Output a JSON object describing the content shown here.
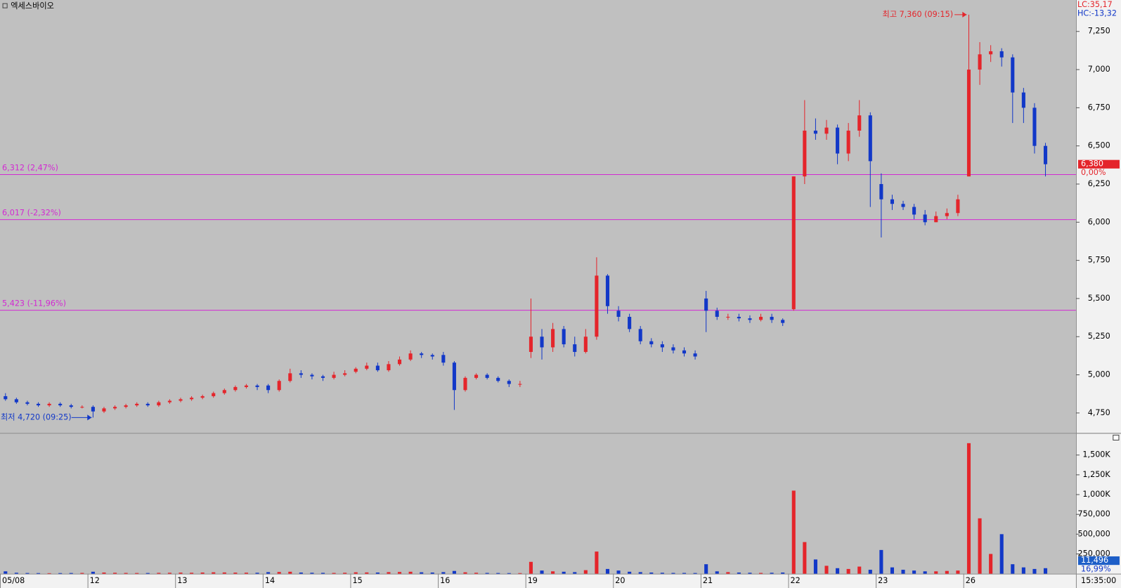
{
  "chart_data": {
    "type": "candlestick",
    "title": "엑세스바이오",
    "categories": [
      "05/08",
      null,
      null,
      null,
      null,
      null,
      null,
      null,
      "12",
      null,
      null,
      null,
      null,
      null,
      null,
      null,
      "13",
      null,
      null,
      null,
      null,
      null,
      null,
      null,
      "14",
      null,
      null,
      null,
      null,
      null,
      null,
      null,
      "15",
      null,
      null,
      null,
      null,
      null,
      null,
      null,
      "16",
      null,
      null,
      null,
      null,
      null,
      null,
      null,
      "19",
      null,
      null,
      null,
      null,
      null,
      null,
      null,
      "20",
      null,
      null,
      null,
      null,
      null,
      null,
      null,
      "21",
      null,
      null,
      null,
      null,
      null,
      null,
      null,
      "22",
      null,
      null,
      null,
      null,
      null,
      null,
      null,
      "23",
      null,
      null,
      null,
      null,
      null,
      null,
      null,
      "26",
      null,
      null,
      null,
      null,
      null,
      null,
      null
    ],
    "open": [
      4860,
      4840,
      4820,
      4810,
      4800,
      4810,
      4800,
      4790,
      4790,
      4760,
      4780,
      4790,
      4800,
      4810,
      4800,
      4820,
      4830,
      4840,
      4850,
      4860,
      4880,
      4900,
      4920,
      4930,
      4930,
      4900,
      4960,
      5010,
      5000,
      4990,
      4980,
      5000,
      5020,
      5040,
      5060,
      5030,
      5070,
      5100,
      5140,
      5130,
      5130,
      5080,
      4900,
      4980,
      5000,
      4980,
      4960,
      4940,
      5150,
      5250,
      5180,
      5300,
      5200,
      5150,
      5250,
      5650,
      5420,
      5380,
      5300,
      5220,
      5200,
      5180,
      5160,
      5140,
      5500,
      5420,
      5380,
      5380,
      5370,
      5360,
      5380,
      5360,
      5430,
      6300,
      6600,
      6580,
      6620,
      6450,
      6600,
      6700,
      6250,
      6150,
      6120,
      6100,
      6050,
      6000,
      6040,
      6060,
      6300,
      7000,
      7100,
      7120,
      7080,
      6850,
      6750,
      6500
    ],
    "high": [
      4880,
      4850,
      4830,
      4820,
      4820,
      4820,
      4810,
      4800,
      4800,
      4790,
      4800,
      4810,
      4820,
      4820,
      4830,
      4840,
      4850,
      4860,
      4870,
      4890,
      4910,
      4930,
      4940,
      4940,
      4940,
      4970,
      5040,
      5030,
      5010,
      5000,
      5020,
      5030,
      5050,
      5080,
      5080,
      5090,
      5120,
      5160,
      5150,
      5140,
      5150,
      5090,
      4990,
      5010,
      5010,
      4990,
      4970,
      4960,
      5500,
      5300,
      5340,
      5320,
      5250,
      5300,
      5770,
      5660,
      5450,
      5400,
      5320,
      5240,
      5220,
      5200,
      5180,
      5160,
      5550,
      5440,
      5400,
      5400,
      5390,
      5400,
      5400,
      5370,
      6300,
      6800,
      6680,
      6670,
      6640,
      6650,
      6800,
      6720,
      6320,
      6180,
      6140,
      6120,
      6080,
      6070,
      6090,
      6180,
      7360,
      7180,
      7160,
      7140,
      7100,
      6880,
      6780,
      6520
    ],
    "low": [
      4830,
      4810,
      4800,
      4790,
      4790,
      4790,
      4780,
      4780,
      4720,
      4750,
      4770,
      4780,
      4790,
      4790,
      4790,
      4810,
      4820,
      4830,
      4840,
      4850,
      4870,
      4890,
      4910,
      4900,
      4880,
      4890,
      4950,
      4980,
      4970,
      4960,
      4970,
      4990,
      5010,
      5030,
      5020,
      5020,
      5060,
      5090,
      5110,
      5100,
      5060,
      4770,
      4890,
      4970,
      4970,
      4950,
      4920,
      4920,
      5110,
      5100,
      5150,
      5180,
      5120,
      5140,
      5230,
      5400,
      5350,
      5280,
      5200,
      5180,
      5150,
      5140,
      5120,
      5100,
      5280,
      5360,
      5360,
      5350,
      5340,
      5350,
      5340,
      5320,
      5420,
      6250,
      6540,
      6540,
      6380,
      6400,
      6560,
      6100,
      5900,
      6080,
      6080,
      6020,
      5980,
      6000,
      6020,
      6040,
      6300,
      6900,
      7050,
      7020,
      6650,
      6650,
      6450,
      6300
    ],
    "close": [
      4840,
      4820,
      4810,
      4800,
      4810,
      4800,
      4790,
      4790,
      4760,
      4780,
      4790,
      4800,
      4810,
      4800,
      4820,
      4830,
      4840,
      4850,
      4860,
      4880,
      4900,
      4920,
      4930,
      4920,
      4900,
      4960,
      5010,
      5000,
      4990,
      4980,
      5000,
      5010,
      5040,
      5060,
      5030,
      5070,
      5100,
      5140,
      5130,
      5120,
      5080,
      4900,
      4980,
      5000,
      4980,
      4960,
      4940,
      4940,
      5250,
      5180,
      5300,
      5200,
      5150,
      5250,
      5650,
      5450,
      5380,
      5300,
      5220,
      5200,
      5180,
      5160,
      5140,
      5120,
      5420,
      5380,
      5380,
      5370,
      5360,
      5380,
      5360,
      5340,
      6300,
      6600,
      6580,
      6620,
      6450,
      6600,
      6700,
      6400,
      6150,
      6120,
      6100,
      6050,
      6000,
      6040,
      6060,
      6150,
      7000,
      7100,
      7120,
      7080,
      6850,
      6750,
      6500,
      6380
    ],
    "up_color": "#e4252b",
    "down_color": "#1238c8",
    "ylim": [
      4619,
      7456
    ],
    "yticks": [
      {
        "value": 4750,
        "label": "4,750"
      },
      {
        "value": 5000,
        "label": "5,000"
      },
      {
        "value": 5250,
        "label": "5,250"
      },
      {
        "value": 5500,
        "label": "5,500"
      },
      {
        "value": 5750,
        "label": "5,750"
      },
      {
        "value": 6000,
        "label": "6,000"
      },
      {
        "value": 6250,
        "label": "6,250"
      },
      {
        "value": 6500,
        "label": "6,500"
      },
      {
        "value": 6750,
        "label": "6,750"
      },
      {
        "value": 7000,
        "label": "7,000"
      },
      {
        "value": 7250,
        "label": "7,250"
      }
    ],
    "reference_color": "#d22ad2",
    "reference_lines": [
      {
        "value": 6312,
        "label": "6,312 (2,47%)"
      },
      {
        "value": 6017,
        "label": "6,017 (-2,32%)"
      },
      {
        "value": 5423,
        "label": "5,423 (-11,96%)"
      }
    ],
    "high_label": "최고 7,360 (09:15)",
    "low_label": "최저 4,720 (09:25)",
    "lc_label": "LC:35,17",
    "hc_label": "HC:-13,32",
    "last_price": {
      "value": 6380,
      "label": "6,380"
    },
    "change_label": "0,00%",
    "x_end_label": "15:35:00",
    "volume": {
      "values": [
        30000,
        12000,
        9000,
        8000,
        7000,
        8000,
        9000,
        10000,
        25000,
        15000,
        12000,
        10000,
        9000,
        9000,
        11000,
        12000,
        14000,
        12000,
        15000,
        18000,
        16000,
        14000,
        13000,
        12000,
        20000,
        22000,
        25000,
        15000,
        12000,
        11000,
        10000,
        12000,
        18000,
        16000,
        15000,
        20000,
        22000,
        25000,
        18000,
        15000,
        20000,
        35000,
        18000,
        12000,
        10000,
        9000,
        8000,
        8000,
        150000,
        40000,
        30000,
        25000,
        20000,
        45000,
        280000,
        60000,
        40000,
        25000,
        20000,
        15000,
        12000,
        10000,
        10000,
        9000,
        120000,
        30000,
        20000,
        15000,
        12000,
        10000,
        12000,
        15000,
        1050000,
        400000,
        180000,
        100000,
        70000,
        60000,
        90000,
        50000,
        300000,
        80000,
        50000,
        40000,
        30000,
        30000,
        35000,
        40000,
        1650000,
        700000,
        250000,
        500000,
        120000,
        80000,
        60000,
        70000
      ],
      "ylim": [
        0,
        1770000
      ],
      "yticks": [
        {
          "value": 250000,
          "label": "250,000"
        },
        {
          "value": 500000,
          "label": "500,000"
        },
        {
          "value": 750000,
          "label": "750,000"
        },
        {
          "value": 1000000,
          "label": "1,000K"
        },
        {
          "value": 1250000,
          "label": "1,250K"
        },
        {
          "value": 1500000,
          "label": "1,500K"
        }
      ],
      "last": {
        "value": 11496,
        "label": "11,496"
      },
      "ratio_label": "16,99%"
    }
  }
}
